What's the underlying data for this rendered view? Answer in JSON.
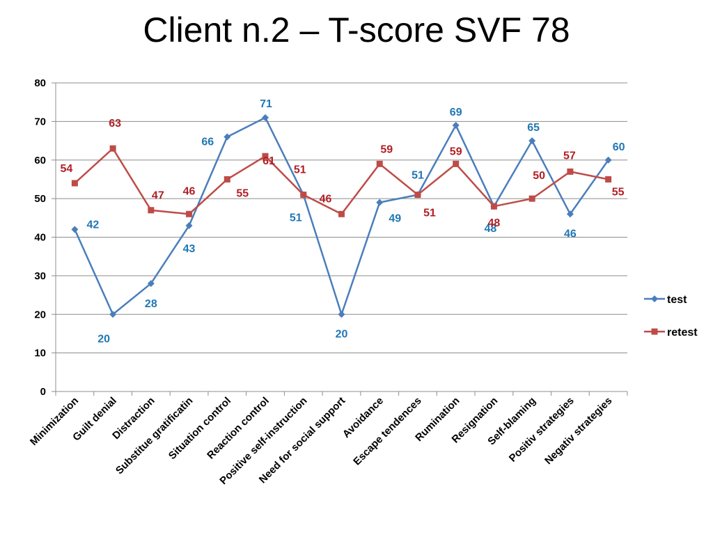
{
  "title": "Client n.2 – T-score SVF 78",
  "chart_data": {
    "type": "line",
    "title": "Client n.2 – T-score SVF 78",
    "xlabel": "",
    "ylabel": "",
    "ylim": [
      0,
      80
    ],
    "yticks": [
      0,
      10,
      20,
      30,
      40,
      50,
      60,
      70,
      80
    ],
    "grid": true,
    "legend": "right",
    "categories": [
      "Minimization",
      "Guilt denial",
      "Distraction",
      "Substitue gratificatin",
      "Situation control",
      "Reaction control",
      "Positive self-instruction",
      "Need for social support",
      "Avoidance",
      "Escape tendences",
      "Rumination",
      "Resignation",
      "Self-blaming",
      "Positiv strategies",
      "Negativ strategies"
    ],
    "series": [
      {
        "name": "test",
        "color": "#4a7ebb",
        "label_color": "#1f77b4",
        "marker": "diamond",
        "values": [
          42,
          20,
          28,
          43,
          66,
          71,
          51,
          20,
          49,
          51,
          69,
          48,
          65,
          46,
          60
        ]
      },
      {
        "name": "retest",
        "color": "#be4b48",
        "label_color": "#b01f24",
        "marker": "square",
        "values": [
          54,
          63,
          47,
          46,
          55,
          61,
          51,
          46,
          59,
          51,
          59,
          48,
          50,
          57,
          55
        ]
      }
    ]
  }
}
